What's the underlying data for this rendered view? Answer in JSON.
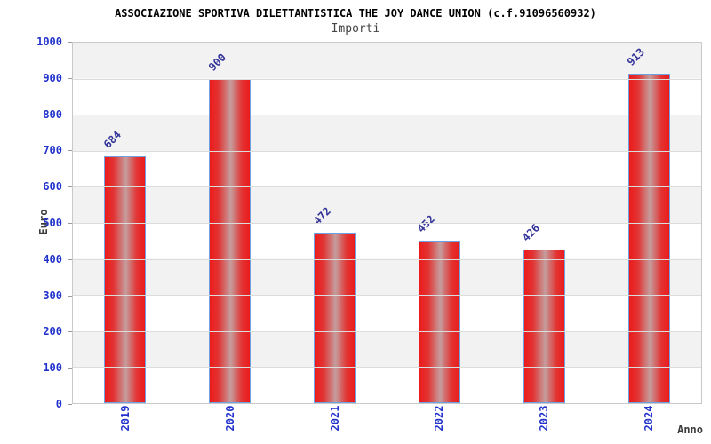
{
  "title": "ASSOCIAZIONE SPORTIVA DILETTANTISTICA THE JOY DANCE UNION (c.f.91096560932)",
  "subtitle": "Importi",
  "chart_data": {
    "type": "bar",
    "title": "ASSOCIAZIONE SPORTIVA DILETTANTISTICA THE JOY DANCE UNION (c.f.91096560932)",
    "subtitle": "Importi",
    "categories": [
      "2019",
      "2020",
      "2021",
      "2022",
      "2023",
      "2024"
    ],
    "values": [
      684,
      900,
      472,
      452,
      426,
      913
    ],
    "xlabel": "Anno",
    "ylabel": "Euro",
    "ylim": [
      0,
      1000
    ],
    "yticks": [
      0,
      100,
      200,
      300,
      400,
      500,
      600,
      700,
      800,
      900,
      1000
    ],
    "grid": true,
    "legend": false,
    "band_fill": "alternating horizontal 100-unit bands"
  },
  "colors": {
    "bar_red": "#ec1b1b",
    "bar_highlight": "#c59d9d",
    "bar_border": "#6fa0e2",
    "tick_label_blue": "#2233cc",
    "value_label_navy": "#333399",
    "axis_title_gray": "#3d3d3d",
    "band_gray": "#f2f2f2",
    "gridline": "#dcdcdc",
    "plot_border": "#c9c9c9"
  }
}
